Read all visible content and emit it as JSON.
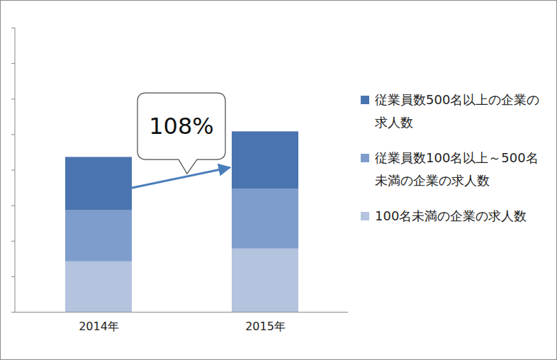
{
  "chart_data": {
    "type": "bar",
    "stacked": true,
    "categories": [
      "2014年",
      "2015年"
    ],
    "series": [
      {
        "name": "従業員数500名以上の企業の求人数",
        "color": "#4a74b0",
        "values": [
          1.5,
          1.62
        ]
      },
      {
        "name": "従業員数100名以上～500名未満の企業の求人数",
        "color": "#7f9dcc",
        "values": [
          1.44,
          1.68
        ]
      },
      {
        "name": "100名未満の企業の求人数",
        "color": "#b4c3de",
        "values": [
          1.42,
          1.78
        ]
      }
    ],
    "ylim": [
      0,
      8
    ],
    "yticks": [
      0,
      1,
      2,
      3,
      4,
      5,
      6,
      7,
      8
    ],
    "tick_labels": "x",
    "legend": "right",
    "annotation": "108%"
  }
}
